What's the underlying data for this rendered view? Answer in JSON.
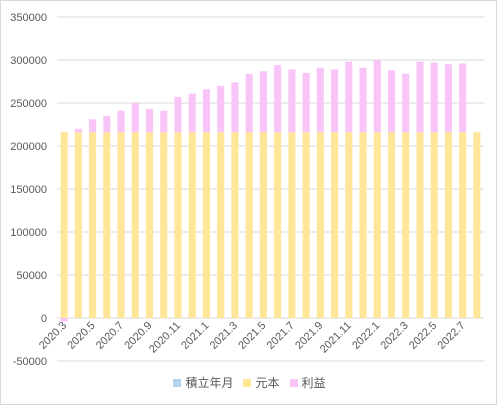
{
  "chart_data": {
    "type": "bar",
    "stacked": true,
    "title": "",
    "xlabel": "",
    "ylabel": "",
    "ylim": [
      -50000,
      350000
    ],
    "yticks": [
      -50000,
      0,
      50000,
      100000,
      150000,
      200000,
      250000,
      300000,
      350000
    ],
    "grid": true,
    "legend_position": "bottom",
    "categories": [
      "2020.3",
      "2020.4",
      "2020.5",
      "2020.6",
      "2020.7",
      "2020.8",
      "2020.9",
      "2020.10",
      "2020.11",
      "2020.12",
      "2021.1",
      "2021.2",
      "2021.3",
      "2021.4",
      "2021.5",
      "2021.6",
      "2021.7",
      "2021.8",
      "2021.9",
      "2021.10",
      "2021.11",
      "2021.12",
      "2022.1",
      "2022.2",
      "2022.3",
      "2022.4",
      "2022.5",
      "2022.6",
      "2022.7",
      "2022.8"
    ],
    "xtick_labels": [
      "2020.3",
      "2020.5",
      "2020.7",
      "2020.9",
      "2020.11",
      "2021.1",
      "2021.3",
      "2021.5",
      "2021.7",
      "2021.9",
      "2021.11",
      "2022.1",
      "2022.3",
      "2022.5",
      "2022.7"
    ],
    "series": [
      {
        "name": "積立年月",
        "color": "#b4d5ef",
        "values": [
          0,
          0,
          0,
          0,
          0,
          0,
          0,
          0,
          0,
          0,
          0,
          0,
          0,
          0,
          0,
          0,
          0,
          0,
          0,
          0,
          0,
          0,
          0,
          0,
          0,
          0,
          0,
          0,
          0,
          0
        ]
      },
      {
        "name": "元本",
        "color": "#ffe699",
        "values": [
          216000,
          216000,
          216000,
          216000,
          216000,
          216000,
          216000,
          216000,
          216000,
          216000,
          216000,
          216000,
          216000,
          216000,
          216000,
          216000,
          216000,
          216000,
          216000,
          216000,
          216000,
          216000,
          216000,
          216000,
          216000,
          216000,
          216000,
          216000,
          216000,
          216000
        ]
      },
      {
        "name": "利益",
        "color": "#f9c5f9",
        "values": [
          -4000,
          4000,
          15000,
          19000,
          25000,
          34000,
          27000,
          25000,
          41000,
          45000,
          50000,
          54000,
          58000,
          68000,
          71000,
          78000,
          73000,
          69000,
          75000,
          73000,
          82000,
          75000,
          84000,
          72000,
          68000,
          82000,
          81000,
          79000,
          80000,
          0
        ]
      }
    ]
  }
}
